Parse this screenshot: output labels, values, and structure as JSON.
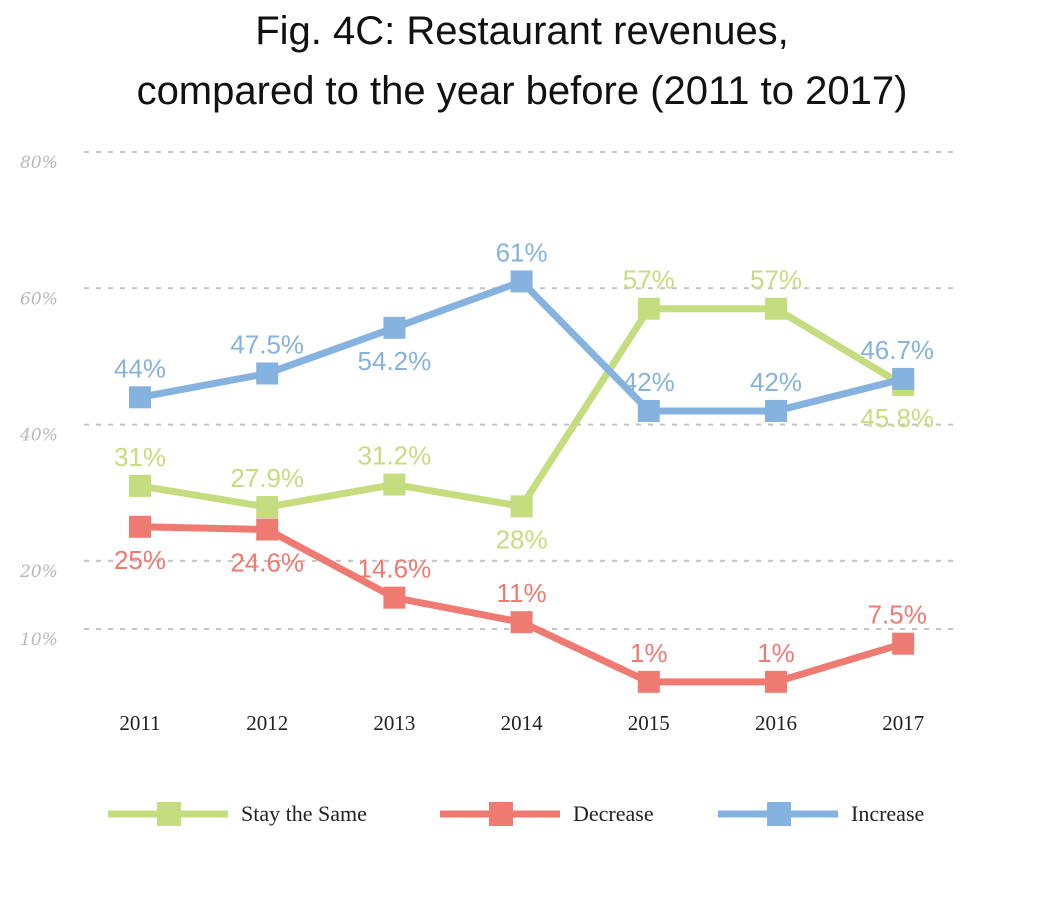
{
  "chart_data": {
    "type": "line",
    "title": "Fig. 4C: Restaurant revenues,",
    "subtitle": "compared to the year before (2011 to 2017)",
    "x": [
      "2011",
      "2012",
      "2013",
      "2014",
      "2015",
      "2016",
      "2017"
    ],
    "y_ticks": [
      {
        "value": 80,
        "label": "80%"
      },
      {
        "value": 60,
        "label": "60%"
      },
      {
        "value": 40,
        "label": "40%"
      },
      {
        "value": 20,
        "label": "20%"
      },
      {
        "value": 10,
        "label": "10%"
      }
    ],
    "ylim": [
      0,
      80
    ],
    "grid": true,
    "legend_position": "bottom",
    "series": [
      {
        "name": "Stay the Same",
        "color": "#c5dd7f",
        "values": [
          31,
          27.9,
          31.2,
          28,
          57,
          57,
          45.8
        ],
        "labels": [
          "31%",
          "27.9%",
          "31.2%",
          "28%",
          "57%",
          "57%",
          "45.8%"
        ]
      },
      {
        "name": "Decrease",
        "color": "#ef7a72",
        "values": [
          25,
          24.6,
          14.6,
          11,
          1,
          1,
          7.5
        ],
        "labels": [
          "25%",
          "24.6%",
          "14.6%",
          "11%",
          "1%",
          "1%",
          "7.5%"
        ]
      },
      {
        "name": "Increase",
        "color": "#86b2df",
        "values": [
          44,
          47.5,
          54.2,
          61,
          42,
          42,
          46.7
        ],
        "labels": [
          "44%",
          "47.5%",
          "54.2%",
          "61%",
          "42%",
          "42%",
          "46.7%"
        ]
      }
    ]
  }
}
